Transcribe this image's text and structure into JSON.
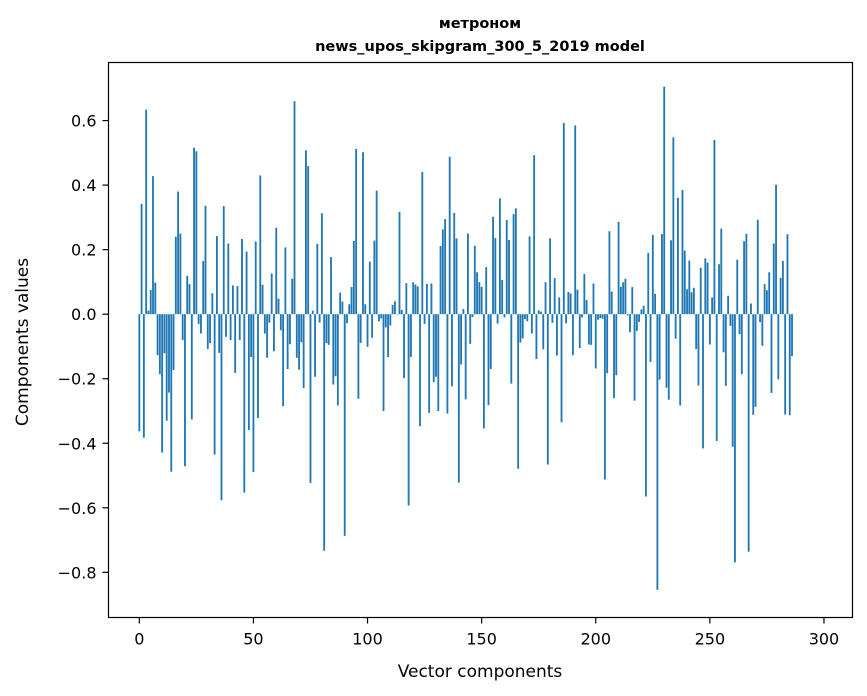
{
  "chart_data": {
    "type": "bar",
    "title_line1": "метроном",
    "title_line2": "news_upos_skipgram_300_5_2019 model",
    "xlabel": "Vector components",
    "ylabel": "Components values",
    "xlim": [
      -13.5,
      312.5
    ],
    "ylim": [
      -0.94,
      0.78
    ],
    "xticks": [
      0,
      50,
      100,
      150,
      200,
      250,
      300
    ],
    "xtick_labels": [
      "0",
      "50",
      "100",
      "150",
      "200",
      "250",
      "300"
    ],
    "yticks": [
      -0.8,
      -0.6,
      -0.4,
      -0.2,
      0.0,
      0.2,
      0.4,
      0.6
    ],
    "ytick_labels": [
      "−0.8",
      "−0.6",
      "−0.4",
      "−0.2",
      "0.0",
      "0.2",
      "0.4",
      "0.6"
    ],
    "bar_color": "#1f77b4",
    "values": [
      -0.363,
      0.342,
      -0.383,
      0.634,
      0.011,
      0.075,
      0.428,
      0.098,
      -0.127,
      -0.186,
      -0.429,
      -0.121,
      -0.33,
      -0.243,
      -0.488,
      -0.173,
      0.24,
      0.38,
      0.25,
      -0.08,
      -0.471,
      0.119,
      0.093,
      -0.326,
      0.516,
      0.505,
      -0.03,
      -0.06,
      0.165,
      0.336,
      -0.108,
      -0.09,
      0.065,
      -0.435,
      0.242,
      -0.12,
      -0.577,
      0.335,
      -0.07,
      0.219,
      -0.08,
      0.089,
      -0.182,
      0.087,
      -0.08,
      0.233,
      -0.553,
      0.194,
      -0.359,
      -0.133,
      -0.489,
      0.225,
      -0.322,
      0.43,
      0.091,
      -0.06,
      -0.135,
      -0.026,
      0.126,
      -0.115,
      0.268,
      0.048,
      -0.05,
      -0.285,
      0.207,
      -0.17,
      -0.093,
      0.11,
      0.66,
      -0.135,
      -0.172,
      -0.087,
      -0.229,
      0.508,
      0.459,
      -0.523,
      0.011,
      -0.194,
      0.218,
      -0.026,
      0.313,
      -0.733,
      -0.09,
      -0.095,
      0.177,
      -0.218,
      -0.192,
      -0.283,
      0.067,
      0.039,
      -0.687,
      -0.028,
      0.031,
      0.084,
      0.227,
      0.512,
      -0.262,
      -0.089,
      0.502,
      0.031,
      -0.101,
      0.163,
      -0.073,
      0.228,
      0.383,
      -0.022,
      -0.013,
      -0.3,
      -0.041,
      -0.133,
      -0.035,
      0.029,
      0.04,
      -0.001,
      0.317,
      0.013,
      -0.198,
      0.096,
      -0.593,
      -0.133,
      0.099,
      0.092,
      0.086,
      -0.347,
      0.441,
      -0.03,
      0.094,
      -0.306,
      0.095,
      -0.211,
      -0.194,
      -0.3,
      0.211,
      0.263,
      0.295,
      -0.308,
      0.488,
      -0.224,
      0.314,
      0.235,
      -0.522,
      -0.156,
      0.016,
      -0.264,
      0.25,
      -0.092,
      -0.009,
      0.212,
      0.13,
      0.099,
      0.085,
      -0.354,
      0.146,
      -0.282,
      -0.17,
      0.302,
      0.236,
      -0.029,
      0.359,
      0.106,
      -0.01,
      0.292,
      0.23,
      -0.215,
      0.31,
      0.328,
      -0.479,
      -0.088,
      -0.075,
      -0.015,
      -0.022,
      0.241,
      -0.06,
      0.493,
      -0.139,
      0.012,
      0.008,
      -0.109,
      0.099,
      -0.466,
      0.235,
      -0.027,
      0.112,
      -0.128,
      0.052,
      -0.335,
      0.593,
      -0.028,
      0.069,
      0.064,
      -0.127,
      0.585,
      0.076,
      -0.105,
      -0.01,
      0.125,
      0.044,
      -0.094,
      -0.095,
      0.095,
      -0.168,
      -0.017,
      -0.012,
      -0.014,
      -0.512,
      -0.183,
      0.257,
      0.07,
      -0.26,
      -0.189,
      0.286,
      0.085,
      0.099,
      0.11,
      -0.004,
      -0.056,
      0.084,
      -0.268,
      -0.052,
      -0.024,
      0.015,
      0.026,
      -0.565,
      0.19,
      -0.148,
      0.246,
      0.063,
      -0.854,
      -0.203,
      0.248,
      0.705,
      -0.228,
      -0.265,
      0.229,
      0.548,
      -0.076,
      0.361,
      -0.283,
      0.385,
      0.197,
      0.077,
      0.166,
      0.068,
      0.082,
      -0.108,
      -0.221,
      0.144,
      -0.416,
      0.173,
      0.16,
      -0.094,
      0.052,
      0.54,
      -0.393,
      0.155,
      0.265,
      -0.118,
      -0.222,
      0.057,
      -0.036,
      -0.411,
      -0.769,
      0.169,
      -0.062,
      -0.186,
      0.226,
      0.249,
      -0.736,
      0.033,
      -0.312,
      -0.287,
      0.293,
      -0.025,
      -0.098,
      0.093,
      0.074,
      0.13,
      -0.244,
      0.219,
      0.401,
      -0.202,
      0.113,
      0.165,
      -0.311,
      0.248,
      -0.313,
      -0.13
    ]
  }
}
